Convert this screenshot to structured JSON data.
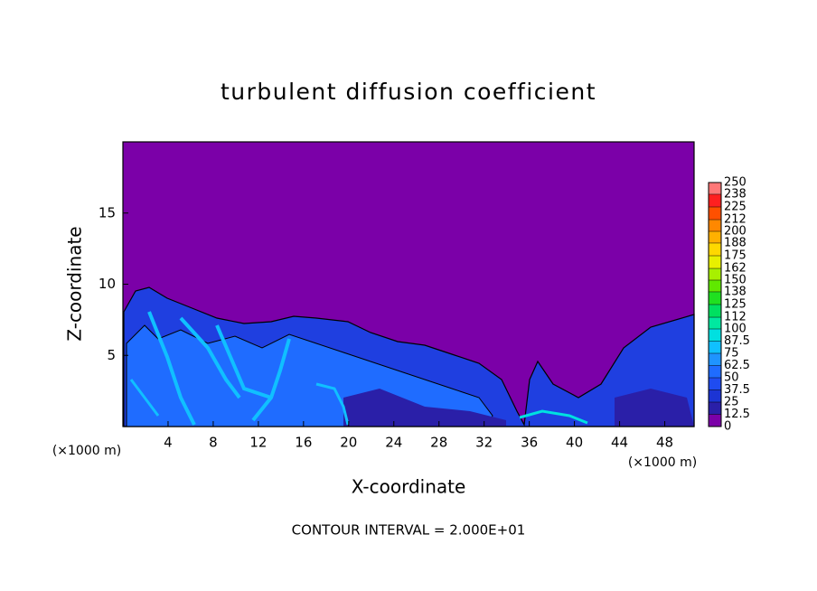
{
  "chart_data": {
    "type": "contour",
    "title": "turbulent diffusion coefficient",
    "xlabel": "X-coordinate",
    "ylabel": "Z-coordinate",
    "x_unit_label": "(×1000 m)",
    "y_unit_label": "(×1000 m)",
    "footnote": "CONTOUR INTERVAL = 2.000E+01",
    "xlim": [
      0,
      50.6
    ],
    "ylim": [
      0,
      20
    ],
    "xticks": [
      4,
      8,
      12,
      16,
      20,
      24,
      28,
      32,
      36,
      40,
      44,
      48
    ],
    "yticks": [
      5,
      10,
      15
    ],
    "field_color": "#7b00a8",
    "colorbar_lim": [
      0,
      250
    ],
    "colorbar_levels": [
      0,
      12.5,
      25,
      37.5,
      50,
      62.5,
      75,
      87.5,
      100,
      112,
      125,
      138,
      150,
      162,
      175,
      188,
      200,
      212,
      225,
      238,
      250
    ],
    "colorbar_colors": [
      "#7b00a8",
      "#2a1fa8",
      "#1c34d4",
      "#1f4cf0",
      "#1f6cff",
      "#1f94ff",
      "#10c0ff",
      "#00e0e0",
      "#00e8a0",
      "#00e060",
      "#20e020",
      "#60e800",
      "#a8f000",
      "#e8f000",
      "#ffd800",
      "#ffb000",
      "#ff8800",
      "#ff5000",
      "#ff2020",
      "#ff7878"
    ]
  }
}
